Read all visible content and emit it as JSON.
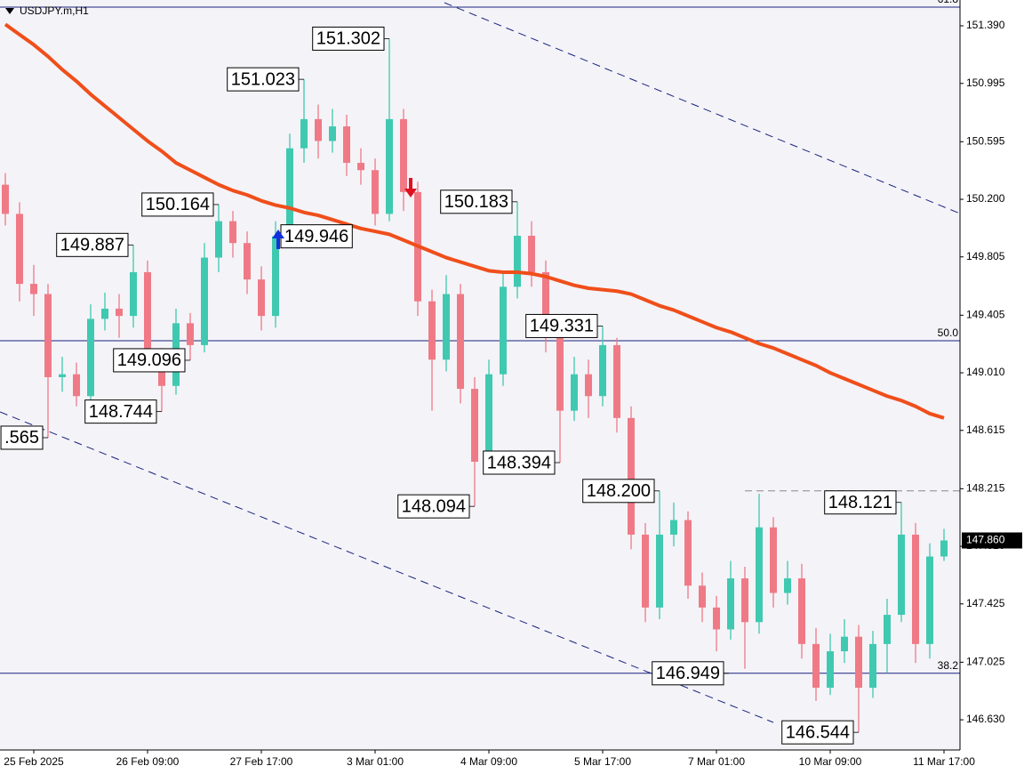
{
  "chart_data": {
    "type": "candlestick",
    "title": "USDJPY.m,H1",
    "categories": [
      null,
      null,
      "25 Feb 2025",
      null,
      null,
      null,
      null,
      null,
      null,
      null,
      "26 Feb 09:00",
      null,
      null,
      null,
      null,
      null,
      null,
      null,
      "27 Feb 17:00",
      null,
      null,
      null,
      null,
      null,
      null,
      null,
      "3 Mar 01:00",
      null,
      null,
      null,
      null,
      null,
      null,
      null,
      "4 Mar 09:00",
      null,
      null,
      null,
      null,
      null,
      null,
      null,
      "5 Mar 17:00",
      null,
      null,
      null,
      null,
      null,
      null,
      null,
      "7 Mar 01:00",
      null,
      null,
      null,
      null,
      null,
      null,
      null,
      "10 Mar 09:00",
      null,
      null,
      null,
      null,
      null,
      null,
      null,
      "11 Mar 17:00"
    ],
    "open": [
      150.3,
      150.1,
      149.62,
      149.55,
      148.98,
      149.0,
      148.85,
      149.38,
      149.45,
      149.4,
      149.7,
      149.1,
      148.92,
      149.35,
      149.2,
      149.8,
      150.05,
      149.9,
      149.65,
      149.4,
      149.946,
      150.55,
      150.75,
      150.6,
      150.7,
      150.45,
      150.4,
      150.1,
      150.75,
      150.25,
      149.5,
      149.1,
      149.55,
      148.9,
      148.4,
      149.0,
      149.6,
      149.95,
      149.7,
      149.25,
      148.75,
      149.0,
      148.85,
      149.2,
      148.7,
      147.9,
      147.4,
      147.9,
      148.0,
      147.55,
      147.4,
      147.25,
      147.6,
      147.3,
      147.95,
      147.5,
      147.6,
      147.15,
      146.85,
      147.1,
      147.2,
      146.85,
      147.15,
      147.35,
      147.9,
      147.15,
      147.75
    ],
    "high": [
      150.38,
      150.18,
      149.75,
      149.62,
      149.12,
      149.08,
      149.48,
      149.56,
      149.55,
      149.887,
      149.78,
      149.18,
      149.45,
      149.42,
      149.9,
      150.164,
      150.12,
      149.98,
      149.74,
      150.05,
      150.65,
      151.023,
      150.85,
      150.82,
      150.78,
      150.55,
      150.48,
      151.302,
      150.82,
      150.32,
      149.58,
      149.68,
      149.62,
      148.98,
      149.1,
      149.7,
      150.183,
      150.05,
      149.78,
      149.32,
      149.12,
      149.1,
      149.331,
      149.25,
      148.78,
      147.98,
      148.2,
      148.12,
      148.06,
      147.64,
      147.48,
      147.72,
      147.68,
      148.18,
      148.02,
      147.72,
      147.7,
      147.26,
      147.22,
      147.32,
      147.28,
      147.24,
      147.46,
      148.121,
      147.98,
      147.84,
      147.94
    ],
    "low": [
      150.02,
      149.5,
      149.4,
      148.565,
      148.88,
      148.78,
      148.8,
      149.3,
      149.25,
      149.32,
      149.02,
      148.744,
      148.86,
      149.096,
      149.15,
      149.7,
      149.8,
      149.55,
      149.3,
      149.32,
      149.9,
      150.45,
      150.48,
      150.52,
      150.36,
      150.3,
      150.02,
      150.05,
      150.12,
      149.4,
      148.75,
      149.02,
      148.8,
      148.094,
      148.32,
      148.92,
      149.52,
      149.6,
      149.15,
      148.394,
      148.68,
      148.7,
      148.78,
      148.6,
      147.8,
      147.3,
      147.32,
      147.82,
      147.46,
      147.3,
      147.1,
      147.18,
      146.98,
      147.22,
      147.4,
      147.42,
      147.05,
      146.76,
      146.8,
      147.02,
      146.544,
      146.78,
      146.95,
      147.3,
      147.02,
      147.05,
      147.72
    ],
    "close": [
      150.1,
      149.62,
      149.55,
      148.98,
      149.0,
      148.85,
      149.38,
      149.45,
      149.4,
      149.7,
      149.1,
      148.92,
      149.35,
      149.2,
      149.8,
      150.05,
      149.9,
      149.65,
      149.4,
      149.946,
      150.55,
      150.75,
      150.6,
      150.7,
      150.45,
      150.4,
      150.1,
      150.75,
      150.25,
      149.5,
      149.1,
      149.55,
      148.9,
      148.4,
      149.0,
      149.6,
      149.95,
      149.7,
      149.25,
      148.75,
      149.0,
      148.85,
      149.2,
      148.7,
      147.9,
      147.4,
      147.9,
      148.0,
      147.55,
      147.4,
      147.25,
      147.6,
      147.3,
      147.95,
      147.5,
      147.6,
      147.15,
      146.85,
      147.1,
      147.2,
      146.85,
      147.15,
      147.35,
      147.9,
      147.15,
      147.75,
      147.86
    ],
    "high_labels": [
      null,
      null,
      null,
      null,
      null,
      null,
      null,
      null,
      null,
      "149.887",
      null,
      null,
      null,
      null,
      null,
      "150.164",
      null,
      null,
      null,
      null,
      null,
      "151.023",
      null,
      null,
      null,
      null,
      null,
      "151.302",
      null,
      null,
      null,
      null,
      null,
      null,
      null,
      null,
      "150.183",
      null,
      null,
      null,
      null,
      null,
      "149.331",
      null,
      null,
      null,
      "148.200",
      null,
      null,
      null,
      null,
      null,
      null,
      null,
      null,
      null,
      null,
      null,
      null,
      null,
      null,
      null,
      null,
      "148.121",
      null,
      null,
      null
    ],
    "low_labels": [
      null,
      null,
      null,
      ".565",
      null,
      null,
      null,
      null,
      null,
      null,
      null,
      "148.744",
      null,
      "149.096",
      null,
      null,
      null,
      null,
      null,
      null,
      null,
      null,
      null,
      null,
      null,
      null,
      null,
      null,
      null,
      null,
      null,
      null,
      null,
      "148.094",
      null,
      null,
      null,
      null,
      null,
      "148.394",
      null,
      null,
      null,
      null,
      null,
      null,
      null,
      null,
      null,
      null,
      null,
      null,
      null,
      null,
      null,
      null,
      null,
      null,
      null,
      null,
      "146.544",
      null,
      null,
      null,
      null,
      null,
      null
    ],
    "close_labels": [
      null,
      null,
      null,
      null,
      null,
      null,
      null,
      null,
      null,
      null,
      null,
      null,
      null,
      null,
      null,
      null,
      null,
      null,
      null,
      "149.946",
      null,
      null,
      null,
      null,
      null,
      null,
      null,
      null,
      null,
      null,
      null,
      null,
      null,
      null,
      null,
      null,
      null,
      null,
      null,
      null,
      null,
      null,
      null,
      null,
      null,
      null,
      null,
      null,
      null,
      null,
      null,
      null,
      null,
      null,
      null,
      null,
      null,
      null,
      null,
      null,
      null,
      null,
      null,
      null,
      null,
      null,
      "147.860"
    ],
    "colors": {
      "up": "#3fc9b0",
      "down": "#ef7a86"
    },
    "moving_average": {
      "color": "#f04e1a",
      "values": [
        151.4,
        151.33,
        151.26,
        151.18,
        151.09,
        151.01,
        150.92,
        150.84,
        150.76,
        150.68,
        150.6,
        150.53,
        150.45,
        150.4,
        150.35,
        150.3,
        150.26,
        150.23,
        150.19,
        150.16,
        150.14,
        150.11,
        150.09,
        150.06,
        150.03,
        150.0,
        149.98,
        149.96,
        149.92,
        149.88,
        149.84,
        149.8,
        149.77,
        149.74,
        149.71,
        149.7,
        149.7,
        149.69,
        149.67,
        149.64,
        149.61,
        149.59,
        149.58,
        149.57,
        149.55,
        149.51,
        149.47,
        149.44,
        149.4,
        149.36,
        149.32,
        149.29,
        149.25,
        149.21,
        149.18,
        149.14,
        149.1,
        149.06,
        149.01,
        148.97,
        148.93,
        148.89,
        148.85,
        148.82,
        148.78,
        148.73,
        148.7
      ]
    },
    "levels": [
      {
        "name": "61.8",
        "value": 151.518
      },
      {
        "name": "50.0",
        "value": 149.23
      },
      {
        "name": "38.2",
        "value": 146.949,
        "value_label": "146.949"
      }
    ],
    "level_color": "#1a237e",
    "ylim": [
      146.423,
      151.567
    ],
    "yticks": [
      {
        "value": 151.39,
        "label": "151.390"
      },
      {
        "value": 150.995,
        "label": "150.995"
      },
      {
        "value": 150.595,
        "label": "150.595"
      },
      {
        "value": 150.2,
        "label": "150.200"
      },
      {
        "value": 149.805,
        "label": "149.805"
      },
      {
        "value": 149.405,
        "label": "149.405"
      },
      {
        "value": 149.01,
        "label": "149.010"
      },
      {
        "value": 148.615,
        "label": "148.615"
      },
      {
        "value": 148.215,
        "label": "148.215"
      },
      {
        "value": 147.82,
        "label": "147.820"
      },
      {
        "value": 147.425,
        "label": "147.425"
      },
      {
        "value": 147.025,
        "label": "147.025"
      },
      {
        "value": 146.63,
        "label": "146.630"
      }
    ]
  }
}
